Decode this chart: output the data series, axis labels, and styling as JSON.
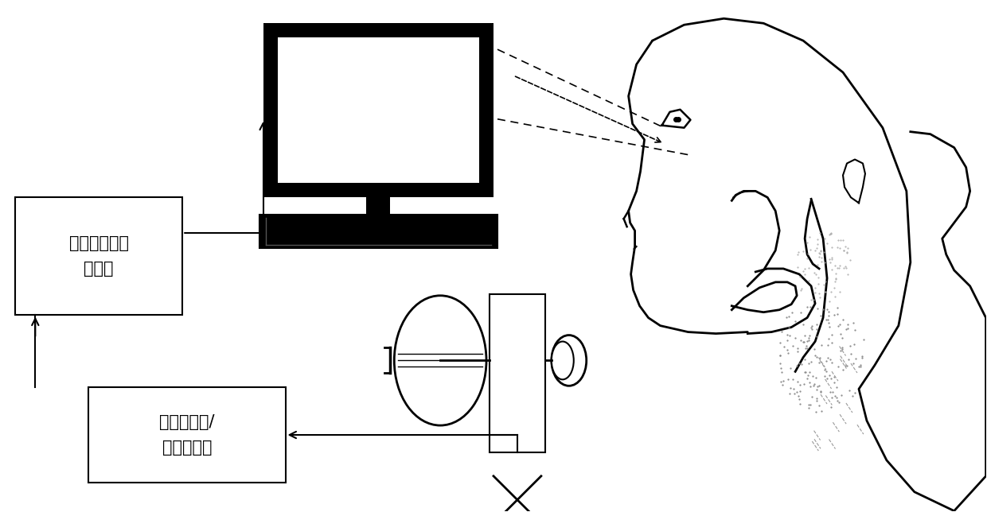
{
  "bg_color": "#ffffff",
  "line_color": "#000000",
  "box1_label": "数据信号转换\n处理器",
  "box2_label": "气流传感器/\n压力传感器",
  "font_size_box": 15
}
